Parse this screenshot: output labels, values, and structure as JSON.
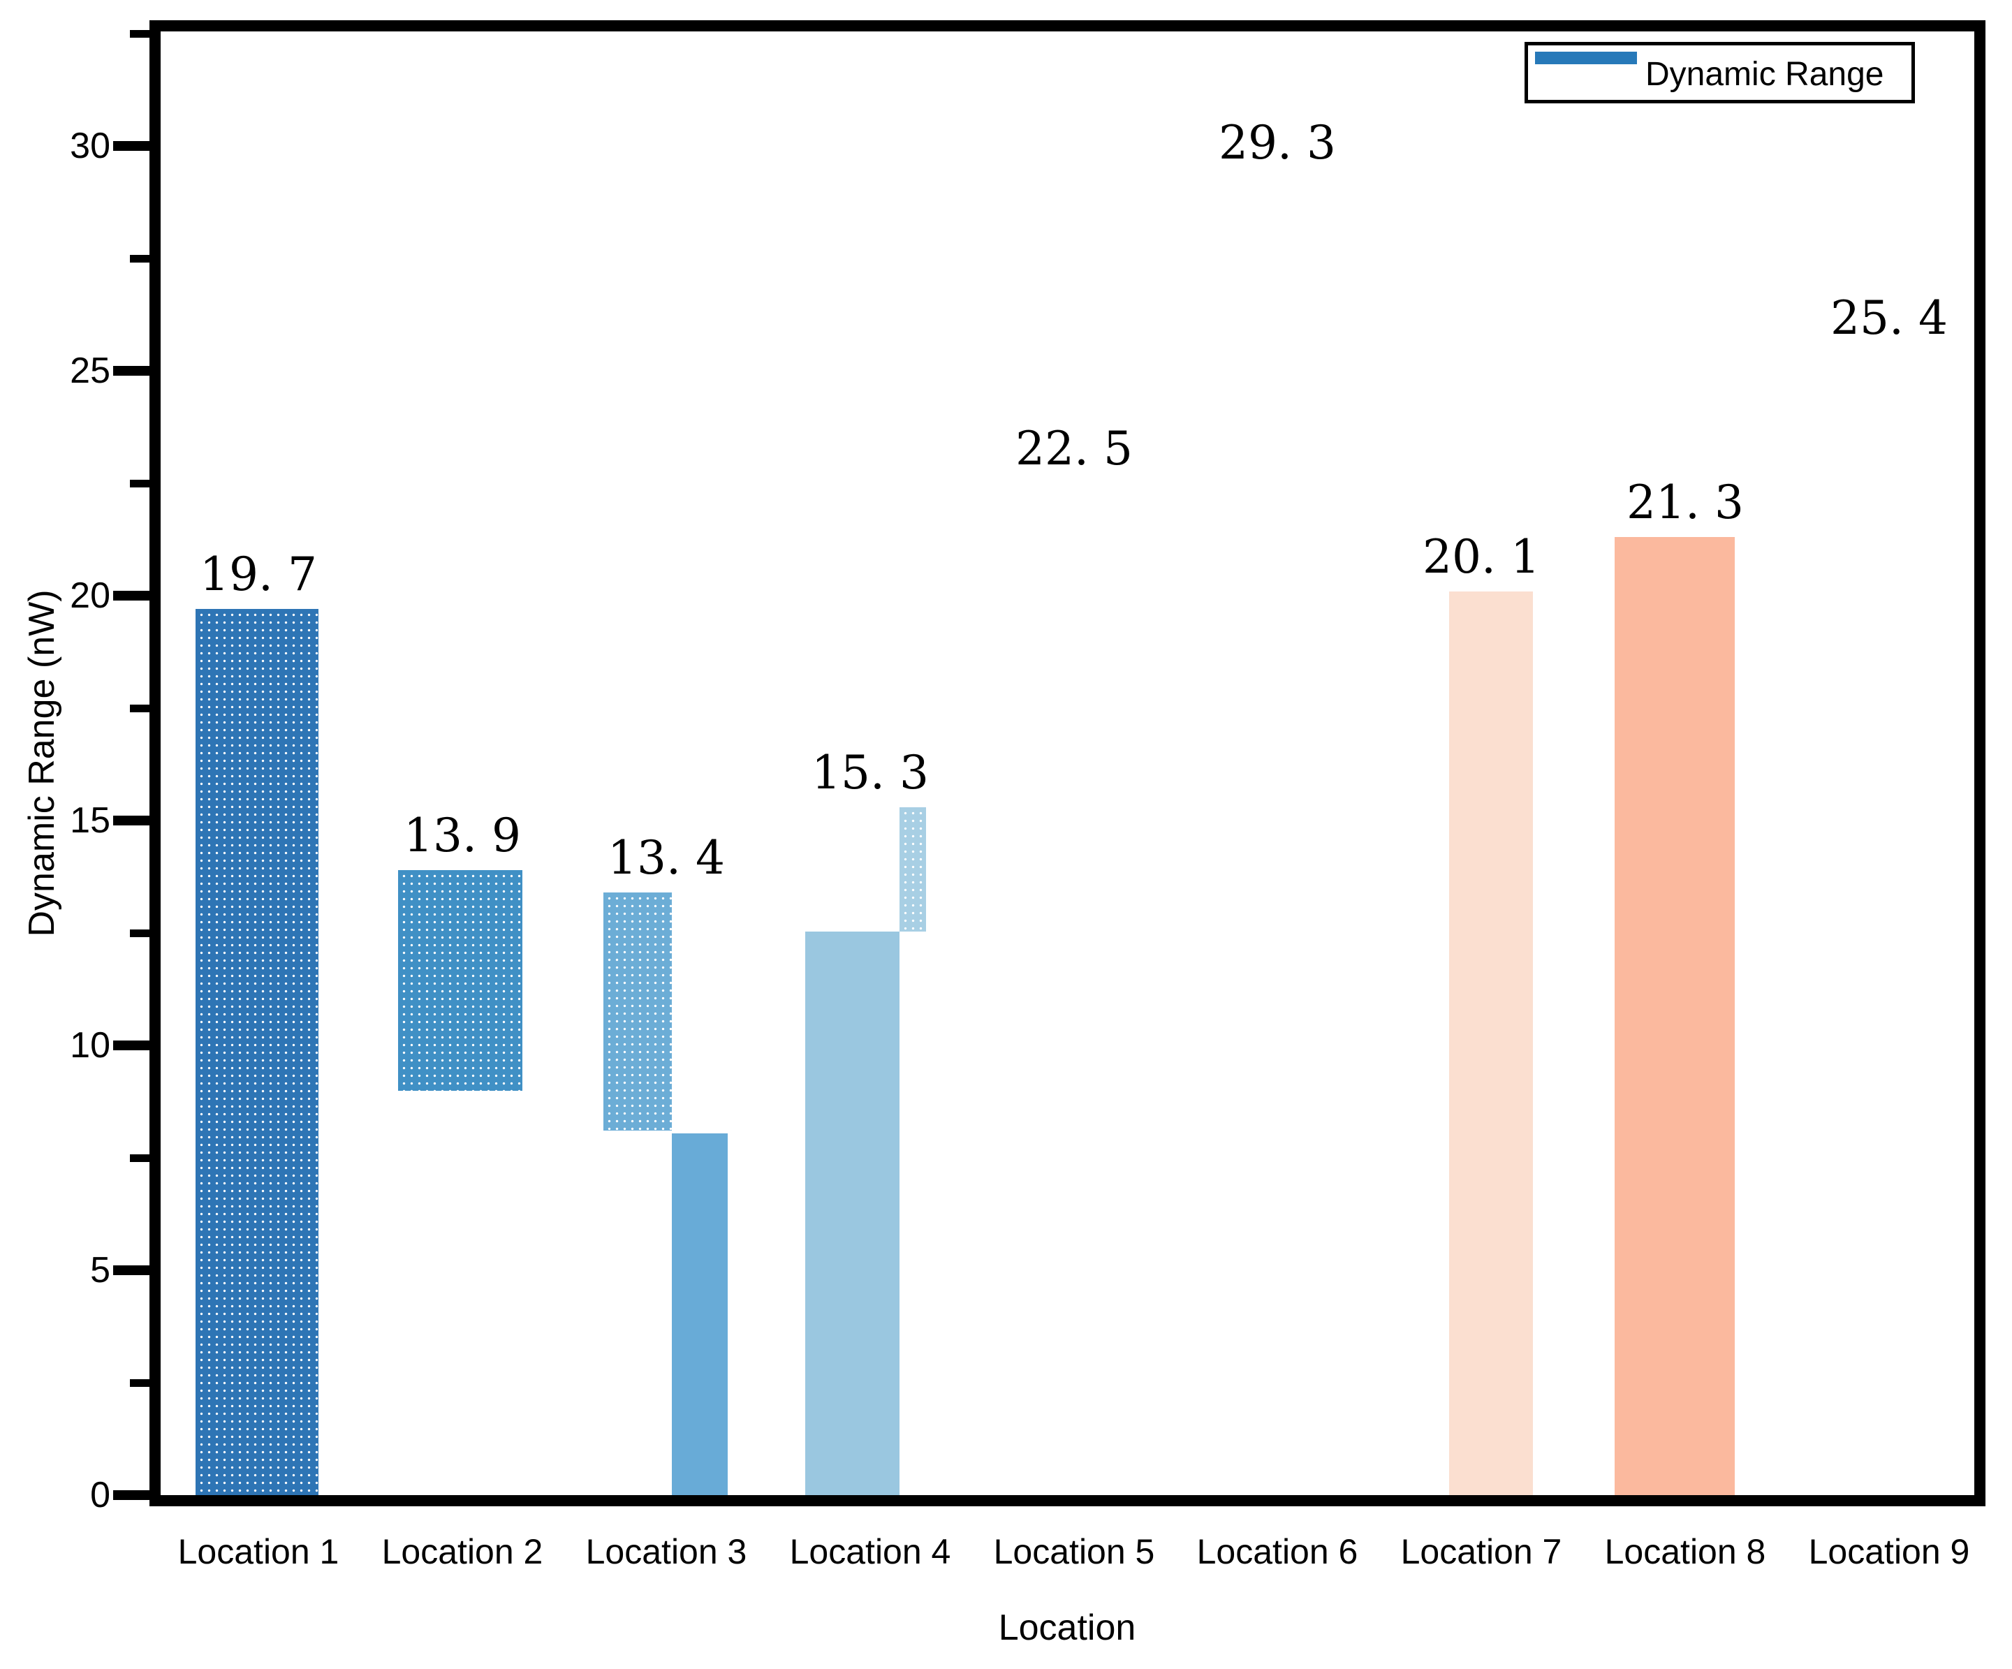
{
  "chart_data": {
    "type": "bar",
    "title": "",
    "xlabel": "Location",
    "ylabel": "Dynamic Range (nW)",
    "categories": [
      "Location 1",
      "Location 2",
      "Location 3",
      "Location 4",
      "Location 5",
      "Location 6",
      "Location 7",
      "Location 8",
      "Location 9"
    ],
    "values": [
      19.7,
      13.9,
      13.4,
      15.3,
      22.5,
      29.3,
      20.1,
      21.3,
      25.4
    ],
    "value_label_texts": [
      "19. 7",
      "13. 9",
      "13. 4",
      "15. 3",
      "22. 5",
      "29. 3",
      "20. 1",
      "21. 3",
      "25. 4"
    ],
    "ylim": [
      0,
      32.55
    ],
    "yticks_major": [
      0,
      5,
      10,
      15,
      20,
      25,
      30
    ],
    "yticks_minor": [
      2.5,
      7.5,
      12.5,
      17.5,
      22.5,
      27.5,
      32.5
    ],
    "grid": false,
    "legend": {
      "label": "Dynamic Range",
      "swatch_color": "#2779b9",
      "position": "upper-right"
    },
    "bars_not_rendered": [
      "Location 5",
      "Location 6",
      "Location 9"
    ],
    "bar_segments": [
      {
        "category_index": 0,
        "from": 0,
        "to": 19.7,
        "color": "#2e75b5",
        "dotted": true,
        "x": 50,
        "width": 176
      },
      {
        "category_index": 1,
        "from": 9.0,
        "to": 13.9,
        "color": "#4090c5",
        "dotted": true,
        "x": 340,
        "width": 178
      },
      {
        "category_index": 2,
        "from": 8.1,
        "to": 13.4,
        "color": "#6cadd6",
        "dotted": true,
        "x": 634,
        "width": 98
      },
      {
        "category_index": 2,
        "from": 0,
        "to": 8.05,
        "color": "#68abd7",
        "dotted": false,
        "x": 732,
        "width": 80
      },
      {
        "category_index": 3,
        "from": 0,
        "to": 12.53,
        "color": "#9ac7e0",
        "dotted": false,
        "x": 923,
        "width": 135
      },
      {
        "category_index": 3,
        "from": 12.53,
        "to": 15.3,
        "color": "#a8cfe4",
        "dotted": true,
        "x": 1058,
        "width": 38
      },
      {
        "category_index": 6,
        "from": 0,
        "to": 20.1,
        "color": "#fbdfd0",
        "dotted": false,
        "x": 1845,
        "width": 120
      },
      {
        "category_index": 7,
        "from": 0,
        "to": 21.3,
        "color": "#fbb99e",
        "dotted": false,
        "x": 2082,
        "width": 172
      }
    ]
  }
}
